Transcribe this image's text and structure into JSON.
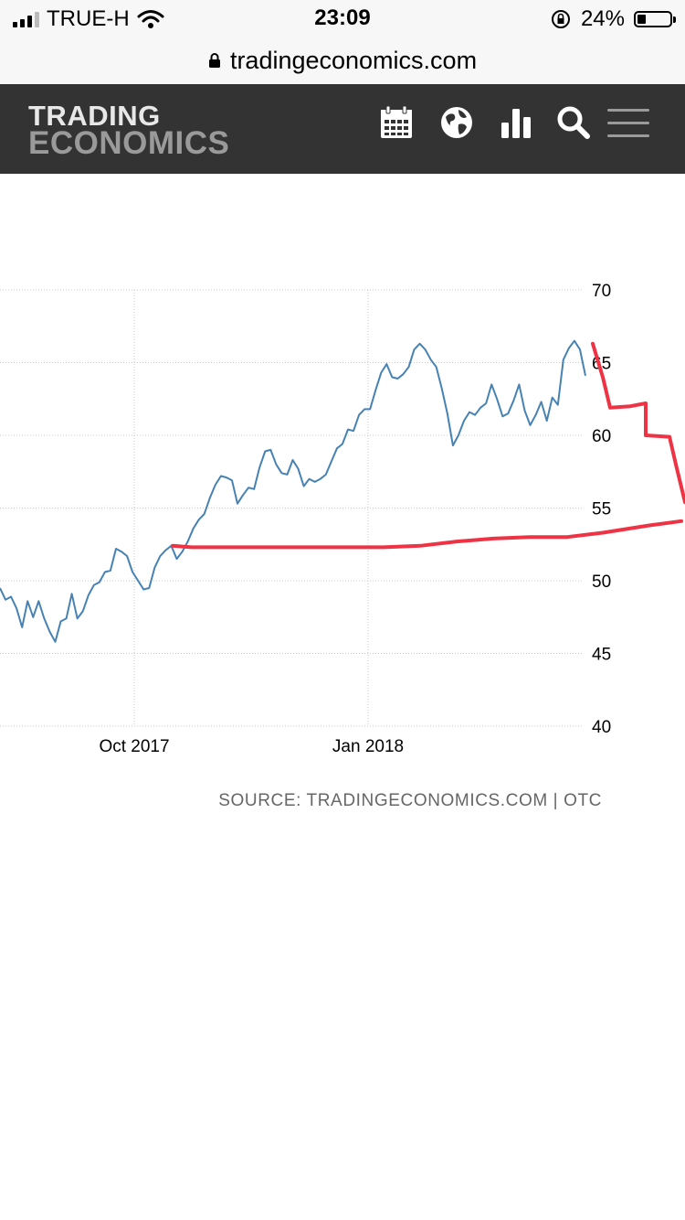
{
  "status_bar": {
    "carrier": "TRUE-H",
    "time": "23:09",
    "battery": "24%"
  },
  "browser": {
    "url": "tradingeconomics.com"
  },
  "header": {
    "logo_line1": "TRADING",
    "logo_line2": "ECONOMICS",
    "icons": [
      "calendar-icon",
      "globe-icon",
      "bar-chart-icon",
      "search-icon",
      "menu-icon"
    ]
  },
  "colors": {
    "header_bg": "#333333",
    "series": "#4682b4",
    "annotation": "#ee3344"
  },
  "chart_data": {
    "type": "line",
    "title": "",
    "xlabel": "",
    "ylabel": "",
    "ylim": [
      40,
      70
    ],
    "yticks": [
      70,
      65,
      60,
      55,
      50,
      45,
      40
    ],
    "xtick_labels": [
      "Oct 2017",
      "Jan 2018"
    ],
    "grid": true,
    "series": [
      {
        "values": [
          49.5,
          48.7,
          48.9,
          48.1,
          46.8,
          48.6,
          47.5,
          48.6,
          47.4,
          46.5,
          45.8,
          47.2,
          47.4,
          49.1,
          47.4,
          47.9,
          49.0,
          49.7,
          49.9,
          50.6,
          50.7,
          52.2,
          52.0,
          51.7,
          50.6,
          50.0,
          49.4,
          49.5,
          50.9,
          51.7,
          52.1,
          52.4,
          51.5,
          52.0,
          52.7,
          53.6,
          54.2,
          54.6,
          55.7,
          56.6,
          57.2,
          57.1,
          56.9,
          55.3,
          55.9,
          56.4,
          56.3,
          57.8,
          58.9,
          59.0,
          58.0,
          57.4,
          57.3,
          58.3,
          57.7,
          56.5,
          57.0,
          56.8,
          57.0,
          57.3,
          58.2,
          59.1,
          59.4,
          60.4,
          60.3,
          61.4,
          61.8,
          61.8,
          63.1,
          64.3,
          64.9,
          64.0,
          63.9,
          64.2,
          64.7,
          65.9,
          66.3,
          65.9,
          65.2,
          64.7,
          63.2,
          61.5,
          59.3,
          60.0,
          61.0,
          61.6,
          61.4,
          61.9,
          62.2,
          63.5,
          62.5,
          61.3,
          61.5,
          62.4,
          63.5,
          61.7,
          60.7,
          61.4,
          62.3,
          61.0,
          62.6,
          62.1,
          65.2,
          66.0,
          66.5,
          65.9,
          64.1
        ]
      }
    ],
    "annotations": [
      {
        "type": "hand-drawn-line",
        "color": "#ee3344",
        "values": [
          52.4,
          52.3,
          52.3,
          52.3,
          52.3,
          52.3,
          52.4,
          52.7,
          52.9,
          53.0,
          53.0,
          53.3,
          53.8,
          54.1
        ]
      },
      {
        "type": "hand-drawn-steps",
        "color": "#ee3344",
        "values": [
          66.3,
          64.0,
          61.9,
          62.0,
          62.2,
          60.0,
          59.9,
          58.0,
          55.4
        ]
      }
    ]
  },
  "source": {
    "text": "SOURCE: TRADINGECONOMICS.COM | OTC"
  }
}
